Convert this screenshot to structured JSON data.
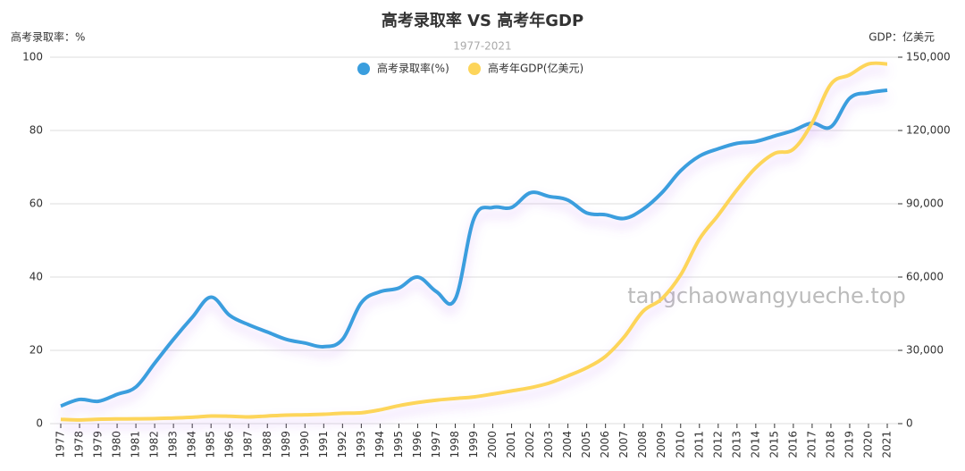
{
  "chart_data": {
    "type": "line",
    "title": "高考录取率 VS 高考年GDP",
    "subtitle": "1977-2021",
    "y_axis_label": "高考录取率：%",
    "y2_axis_label": "GDP：亿美元",
    "watermark": "tangchaowangyueche.top",
    "categories": [
      "1977",
      "1978",
      "1979",
      "1980",
      "1981",
      "1982",
      "1983",
      "1984",
      "1985",
      "1986",
      "1987",
      "1988",
      "1989",
      "1990",
      "1991",
      "1992",
      "1993",
      "1994",
      "1995",
      "1996",
      "1997",
      "1998",
      "1999",
      "2000",
      "2001",
      "2002",
      "2003",
      "2004",
      "2005",
      "2006",
      "2007",
      "2008",
      "2009",
      "2010",
      "2011",
      "2012",
      "2013",
      "2014",
      "2015",
      "2016",
      "2017",
      "2018",
      "2019",
      "2020",
      "2021"
    ],
    "series": [
      {
        "name": "高考录取率(%)",
        "color": "#3a9ede",
        "values": [
          4.8,
          6.6,
          6.1,
          8.0,
          10.0,
          16.5,
          23.0,
          29.0,
          34.5,
          29.5,
          27.0,
          25.0,
          23.0,
          22.0,
          21.0,
          23.0,
          33.0,
          36.0,
          37.0,
          40.0,
          36.0,
          34.0,
          56.0,
          59.0,
          59.0,
          63.0,
          62.0,
          61.0,
          57.5,
          57.0,
          56.0,
          58.5,
          63.0,
          69.0,
          73.0,
          75.0,
          76.5,
          77.0,
          78.5,
          80.0,
          82.0,
          81.0,
          88.8,
          90.3,
          91.0
        ]
      },
      {
        "name": "高考年GDP(亿美元)",
        "color": "#fdd55a",
        "axis": "y2",
        "values": [
          1750,
          1495,
          1783,
          1911,
          1958,
          2050,
          2306,
          2599,
          3094,
          3007,
          2729,
          3123,
          3476,
          3609,
          3833,
          4269,
          4447,
          5643,
          7345,
          8637,
          9616,
          10290,
          10940,
          12113,
          13394,
          14705,
          16602,
          19553,
          22860,
          27521,
          35522,
          45982,
          51101,
          60872,
          75515,
          85322,
          95704,
          104757,
          110616,
          112333,
          123104,
          138948,
          142799,
          147227,
          147227
        ]
      }
    ],
    "ylim": [
      0,
      100
    ],
    "yticks": [
      0,
      20,
      40,
      60,
      80,
      100
    ],
    "y2lim": [
      0,
      150000
    ],
    "y2ticks": [
      0,
      {
        "value": 30000,
        "label": "30,000"
      },
      {
        "value": 60000,
        "label": "60,000"
      },
      {
        "value": 90000,
        "label": "90,000"
      },
      {
        "value": 120000,
        "label": "120,000"
      },
      {
        "value": 150000,
        "label": "150,000"
      }
    ],
    "grid": true
  }
}
